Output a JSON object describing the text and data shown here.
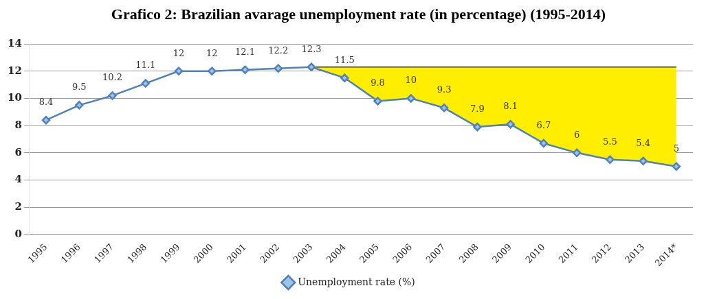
{
  "chart_data": {
    "type": "line",
    "title": "Grafico 2: Brazilian avarage unemployment rate (in percentage) (1995-2014)",
    "categories": [
      "1995",
      "1996",
      "1997",
      "1998",
      "1999",
      "2000",
      "2001",
      "2002",
      "2003",
      "2004",
      "2005",
      "2006",
      "2007",
      "2008",
      "2009",
      "2010",
      "2011",
      "2012",
      "2013",
      "2014*"
    ],
    "series": [
      {
        "name": "Unemployment rate (%)",
        "color": "#4f81bd",
        "values": [
          8.4,
          9.5,
          10.2,
          11.1,
          12,
          12,
          12.1,
          12.2,
          12.3,
          11.5,
          9.8,
          10,
          9.3,
          7.9,
          8.1,
          6.7,
          6,
          5.5,
          5.4,
          5
        ],
        "value_labels": [
          "8.4",
          "9.5",
          "10.2",
          "11.1",
          "12",
          "12",
          "12.1",
          "12.2",
          "12.3",
          "11.5",
          "9.8",
          "10",
          "9.3",
          "7.9",
          "8.1",
          "6.7",
          "6",
          "5.5",
          "5.4",
          "5"
        ]
      },
      {
        "type": "area",
        "color": "#ffee00",
        "marker": "none",
        "values": [
          null,
          null,
          null,
          null,
          null,
          null,
          null,
          null,
          12.3,
          12.3,
          12.3,
          12.3,
          12.3,
          12.3,
          12.3,
          12.3,
          12.3,
          12.3,
          12.3,
          12.3
        ]
      }
    ],
    "ylim": [
      0,
      14
    ],
    "yticks": [
      0,
      2,
      4,
      6,
      8,
      10,
      12,
      14
    ],
    "grid": "y",
    "legend": "bottom",
    "marker": "diamond",
    "line_style": "solid"
  }
}
